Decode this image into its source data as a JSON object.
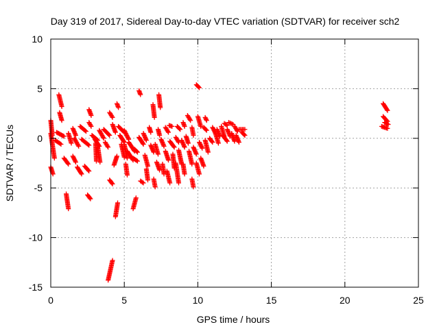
{
  "chart_data": {
    "type": "scatter",
    "title": "Day 319 of 2017, Sidereal Day-to-day VTEC variation (SDTVAR) for receiver sch2",
    "xlabel": "GPS time / hours",
    "ylabel": "SDTVAR / TECUs",
    "xlim": [
      0,
      25
    ],
    "ylim": [
      -15,
      10
    ],
    "xticks": [
      0,
      5,
      10,
      15,
      20,
      25
    ],
    "yticks": [
      -15,
      -10,
      -5,
      0,
      5,
      10
    ],
    "xtick_labels": [
      "0",
      "5",
      "10",
      "15",
      "20",
      "25"
    ],
    "ytick_labels": [
      "-15",
      "-10",
      "-5",
      "0",
      "5",
      "10"
    ],
    "grid": true,
    "legend": "none",
    "marker": "+",
    "color": "#ff0000",
    "series": [
      {
        "name": "sch2",
        "tracks": [
          [
            0.0,
            1.8,
            0.1,
            0.3
          ],
          [
            0.0,
            -2.9,
            0.15,
            -3.6
          ],
          [
            0.0,
            0.5,
            0.25,
            -2.0
          ],
          [
            0.3,
            -0.2,
            0.7,
            -0.6
          ],
          [
            0.4,
            0.6,
            0.9,
            0.2
          ],
          [
            0.55,
            4.4,
            0.75,
            3.2
          ],
          [
            0.6,
            2.6,
            0.75,
            1.8
          ],
          [
            0.9,
            -2.0,
            1.2,
            -2.6
          ],
          [
            1.05,
            -5.6,
            1.2,
            -7.1
          ],
          [
            1.2,
            0.5,
            1.4,
            -0.5
          ],
          [
            1.5,
            1.0,
            1.7,
            0.3
          ],
          [
            1.5,
            -1.8,
            1.7,
            -2.4
          ],
          [
            1.6,
            0.0,
            1.9,
            -0.8
          ],
          [
            1.8,
            -2.9,
            2.1,
            -3.6
          ],
          [
            2.0,
            1.2,
            2.4,
            0.7
          ],
          [
            2.1,
            -0.1,
            2.6,
            -0.7
          ],
          [
            2.3,
            -2.8,
            2.6,
            -3.3
          ],
          [
            2.6,
            2.9,
            2.75,
            2.3
          ],
          [
            2.6,
            1.6,
            2.75,
            1.2
          ],
          [
            2.5,
            -5.7,
            2.7,
            -6.1
          ],
          [
            2.8,
            0.3,
            3.2,
            -0.2
          ],
          [
            3.0,
            -0.1,
            3.3,
            -0.8
          ],
          [
            3.05,
            -0.5,
            3.1,
            -2.3
          ],
          [
            3.2,
            -0.9,
            3.35,
            -2.4
          ],
          [
            3.3,
            0.8,
            3.6,
            0.0
          ],
          [
            3.6,
            0.9,
            4.0,
            0.3
          ],
          [
            3.7,
            -0.4,
            3.9,
            -0.9
          ],
          [
            4.0,
            2.6,
            4.2,
            2.1
          ],
          [
            4.0,
            -4.2,
            4.2,
            -4.6
          ],
          [
            4.2,
            -12.3,
            3.9,
            -14.3
          ],
          [
            4.2,
            1.4,
            4.4,
            0.6
          ],
          [
            4.5,
            3.5,
            4.6,
            3.1
          ],
          [
            4.55,
            -6.5,
            4.4,
            -7.9
          ],
          [
            4.5,
            -1.8,
            4.3,
            -2.7
          ],
          [
            4.6,
            1.2,
            5.0,
            0.6
          ],
          [
            4.7,
            0.3,
            5.0,
            -0.4
          ],
          [
            4.8,
            -0.6,
            5.0,
            -1.9
          ],
          [
            5.0,
            -0.6,
            5.2,
            -2.0
          ],
          [
            5.0,
            0.8,
            5.3,
            -0.1
          ],
          [
            5.1,
            -2.6,
            5.2,
            -3.7
          ],
          [
            5.2,
            -1.3,
            5.6,
            -2.2
          ],
          [
            5.3,
            -0.4,
            5.7,
            -1.3
          ],
          [
            5.6,
            -2.0,
            5.9,
            -2.3
          ],
          [
            5.7,
            -1.1,
            5.9,
            -1.4
          ],
          [
            5.8,
            -6.0,
            5.6,
            -7.1
          ],
          [
            6.0,
            4.8,
            6.1,
            4.4
          ],
          [
            6.0,
            0.1,
            6.3,
            -0.6
          ],
          [
            6.1,
            -4.3,
            6.3,
            -4.5
          ],
          [
            6.3,
            0.5,
            6.5,
            -0.2
          ],
          [
            6.4,
            -1.7,
            6.6,
            -2.8
          ],
          [
            6.5,
            -3.1,
            6.6,
            -4.2
          ],
          [
            6.7,
            1.1,
            6.8,
            0.6
          ],
          [
            6.8,
            -0.7,
            7.0,
            -1.4
          ],
          [
            6.95,
            3.4,
            7.05,
            2.1
          ],
          [
            7.0,
            -4.1,
            7.1,
            -4.9
          ],
          [
            7.1,
            -0.6,
            7.3,
            -1.6
          ],
          [
            7.2,
            -2.4,
            7.4,
            -3.2
          ],
          [
            7.35,
            4.4,
            7.45,
            3.1
          ],
          [
            7.3,
            0.9,
            7.4,
            0.3
          ],
          [
            7.5,
            -0.1,
            7.7,
            -0.8
          ],
          [
            7.6,
            -2.6,
            7.7,
            -3.6
          ],
          [
            7.8,
            1.1,
            8.0,
            0.6
          ],
          [
            7.8,
            -1.3,
            8.0,
            -2.2
          ],
          [
            7.9,
            -3.3,
            8.1,
            -4.5
          ],
          [
            8.05,
            1.3,
            8.25,
            1.2
          ],
          [
            8.1,
            -0.3,
            8.4,
            -0.9
          ],
          [
            8.3,
            -1.6,
            8.4,
            -3.0
          ],
          [
            8.5,
            0.1,
            8.7,
            -0.4
          ],
          [
            8.5,
            -2.5,
            8.7,
            -4.5
          ],
          [
            8.6,
            1.2,
            8.8,
            0.9
          ],
          [
            8.7,
            -1.2,
            8.9,
            -2.6
          ],
          [
            8.9,
            -0.2,
            9.1,
            -0.9
          ],
          [
            9.0,
            -2.6,
            9.1,
            -3.6
          ],
          [
            9.0,
            1.6,
            9.1,
            1.2
          ],
          [
            9.2,
            0.2,
            9.35,
            -0.5
          ],
          [
            9.3,
            2.3,
            9.5,
            1.8
          ],
          [
            9.4,
            -1.3,
            9.6,
            -2.6
          ],
          [
            9.6,
            1.1,
            9.7,
            0.3
          ],
          [
            9.6,
            -4.1,
            9.7,
            -4.9
          ],
          [
            9.7,
            -0.9,
            9.9,
            -1.6
          ],
          [
            9.9,
            5.4,
            10.1,
            5.1
          ],
          [
            9.9,
            -2.5,
            10.1,
            -3.6
          ],
          [
            10.0,
            2.2,
            10.2,
            1.2
          ],
          [
            10.1,
            -0.4,
            10.3,
            -1.0
          ],
          [
            10.2,
            -2.0,
            10.4,
            -2.8
          ],
          [
            10.4,
            1.1,
            10.6,
            0.8
          ],
          [
            10.5,
            -0.2,
            10.7,
            -1.4
          ],
          [
            10.5,
            2.1,
            10.6,
            1.8
          ],
          [
            10.8,
            0.0,
            11.0,
            -0.4
          ],
          [
            11.0,
            1.1,
            11.2,
            0.5
          ],
          [
            11.2,
            0.5,
            11.4,
            -0.5
          ],
          [
            11.3,
            0.9,
            11.5,
            0.2
          ],
          [
            11.6,
            1.2,
            11.8,
            0.2
          ],
          [
            11.7,
            0.3,
            12.0,
            -0.3
          ],
          [
            11.8,
            1.5,
            12.0,
            1.3
          ],
          [
            12.0,
            0.9,
            12.2,
            0.2
          ],
          [
            12.1,
            1.6,
            12.4,
            1.4
          ],
          [
            12.3,
            0.5,
            12.5,
            -0.3
          ],
          [
            12.5,
            1.2,
            12.7,
            0.7
          ],
          [
            12.6,
            0.3,
            12.8,
            -0.4
          ],
          [
            12.8,
            0.9,
            13.2,
            0.9
          ],
          [
            13.0,
            0.6,
            13.2,
            0.3
          ],
          [
            22.6,
            3.5,
            22.9,
            2.8
          ],
          [
            22.6,
            2.2,
            22.9,
            1.7
          ],
          [
            22.5,
            1.2,
            22.9,
            1.0
          ],
          [
            22.7,
            1.6,
            22.95,
            1.4
          ]
        ]
      }
    ]
  }
}
